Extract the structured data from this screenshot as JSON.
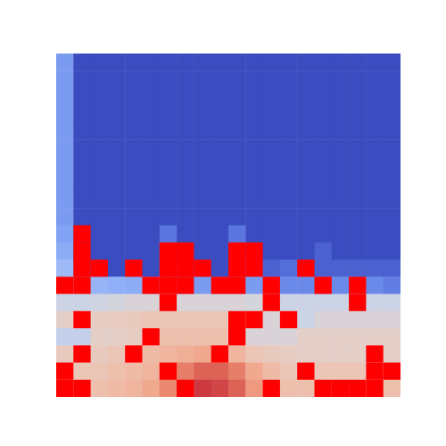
{
  "chart_data": {
    "type": "heatmap",
    "tick_labels": false,
    "color": "#ff0000",
    "color_range": [
      0,
      1
    ],
    "values": [
      [
        0.2,
        0,
        0,
        0,
        0,
        0,
        0,
        0,
        0,
        0,
        0,
        0,
        0,
        0,
        0,
        0,
        0,
        0,
        0,
        0
      ],
      [
        0.2,
        0,
        0,
        0,
        0,
        0,
        0,
        0,
        0,
        0,
        0,
        0,
        0,
        0,
        0,
        0,
        0,
        0,
        0,
        0
      ],
      [
        0.2,
        0,
        0,
        0,
        0,
        0,
        0,
        0,
        0,
        0,
        0,
        0,
        0,
        0,
        0,
        0,
        0,
        0,
        0,
        0
      ],
      [
        0.2,
        0,
        0,
        0,
        0,
        0,
        0,
        0,
        0,
        0,
        0,
        0,
        0,
        0,
        0,
        0,
        0,
        0,
        0,
        0
      ],
      [
        0.2,
        0,
        0,
        0,
        0,
        0,
        0,
        0,
        0,
        0,
        0,
        0,
        0,
        0,
        0,
        0,
        0,
        0,
        0,
        0
      ],
      [
        0.2,
        0,
        0,
        0,
        0,
        0,
        0,
        0,
        0,
        0,
        0,
        0,
        0,
        0,
        0,
        0,
        0,
        0,
        0,
        0
      ],
      [
        0.2,
        0,
        0,
        0,
        0,
        0,
        0,
        0,
        0,
        0,
        0,
        0,
        0,
        0,
        0,
        0,
        0,
        0,
        0,
        0
      ],
      [
        0.2,
        0,
        0,
        0,
        0,
        0,
        0,
        0,
        0,
        0,
        0,
        0,
        0,
        0,
        0,
        0,
        0,
        0,
        0,
        0
      ],
      [
        0.2,
        0,
        0,
        0,
        0,
        0,
        0,
        0,
        0,
        0,
        0,
        0,
        0,
        0,
        0,
        0,
        0,
        0,
        0,
        0
      ],
      [
        0.2,
        0,
        0,
        0,
        0,
        0,
        0,
        0,
        0,
        0,
        0,
        0,
        0,
        0,
        0,
        0,
        0,
        0,
        0,
        0
      ],
      [
        0.22,
        0,
        0,
        0,
        0,
        0,
        0.1,
        0,
        0,
        0,
        0.1,
        0,
        0,
        0,
        0,
        0,
        0,
        0,
        0,
        0
      ],
      [
        0.25,
        0,
        0,
        0,
        0,
        0,
        0.12,
        0,
        0,
        0,
        0.12,
        0,
        0,
        0,
        0,
        0.05,
        0,
        0,
        0,
        0
      ],
      [
        0.3,
        0.1,
        0,
        0,
        0,
        0,
        0.12,
        0.08,
        0,
        0,
        0.15,
        0.08,
        0.05,
        0.08,
        0.05,
        0.05,
        0.05,
        0.05,
        0.05,
        0.05
      ],
      [
        0.35,
        0.3,
        0.28,
        0.26,
        0.25,
        0.25,
        0.2,
        0.2,
        0.2,
        0.2,
        0.2,
        0.2,
        0.15,
        0.15,
        0.15,
        0.15,
        0.15,
        0.15,
        0.15,
        0.12
      ],
      [
        0.45,
        0.45,
        0.46,
        0.48,
        0.5,
        0.5,
        0.5,
        0.5,
        0.5,
        0.5,
        0.5,
        0.48,
        0.46,
        0.45,
        0.45,
        0.45,
        0.45,
        0.45,
        0.45,
        0.45
      ],
      [
        0.55,
        0.55,
        0.56,
        0.57,
        0.58,
        0.6,
        0.6,
        0.6,
        0.6,
        0.6,
        0.58,
        0.56,
        0.5,
        0.45,
        0.45,
        0.5,
        0.5,
        0.5,
        0.5,
        0.5
      ],
      [
        0.42,
        0.42,
        0.55,
        0.55,
        0.56,
        0.58,
        0.62,
        0.62,
        0.62,
        0.62,
        0.62,
        0.5,
        0.5,
        0.5,
        0.55,
        0.55,
        0.55,
        0.55,
        0.55,
        0.55
      ],
      [
        0.58,
        0.58,
        0.58,
        0.6,
        0.62,
        0.64,
        0.66,
        0.68,
        0.7,
        0.68,
        0.66,
        0.6,
        0.58,
        0.56,
        0.55,
        0.55,
        0.55,
        0.55,
        0.55,
        0.55
      ],
      [
        0.6,
        0.6,
        0.6,
        0.62,
        0.64,
        0.66,
        0.72,
        0.8,
        0.85,
        0.85,
        0.8,
        0.7,
        0.64,
        0.6,
        0.6,
        0.6,
        0.6,
        0.6,
        0.6,
        0.6
      ],
      [
        0.62,
        0.62,
        0.62,
        0.64,
        0.66,
        0.7,
        0.78,
        0.85,
        0.92,
        0.9,
        0.85,
        0.74,
        0.66,
        0.62,
        0.62,
        0.62,
        0.62,
        0.62,
        0.62,
        0.62
      ]
    ],
    "masked": [
      [
        10,
        1
      ],
      [
        11,
        1
      ],
      [
        11,
        6
      ],
      [
        11,
        7
      ],
      [
        11,
        10
      ],
      [
        11,
        11
      ],
      [
        12,
        1
      ],
      [
        12,
        2
      ],
      [
        12,
        4
      ],
      [
        12,
        6
      ],
      [
        12,
        7
      ],
      [
        12,
        8
      ],
      [
        12,
        10
      ],
      [
        12,
        11
      ],
      [
        12,
        14
      ],
      [
        13,
        0
      ],
      [
        13,
        1
      ],
      [
        13,
        5
      ],
      [
        13,
        6
      ],
      [
        13,
        7
      ],
      [
        13,
        9
      ],
      [
        13,
        10
      ],
      [
        13,
        12
      ],
      [
        13,
        15
      ],
      [
        13,
        17
      ],
      [
        14,
        6
      ],
      [
        14,
        12
      ],
      [
        14,
        17
      ],
      [
        15,
        1
      ],
      [
        15,
        10
      ],
      [
        15,
        11
      ],
      [
        15,
        13
      ],
      [
        16,
        5
      ],
      [
        16,
        10
      ],
      [
        17,
        1
      ],
      [
        17,
        4
      ],
      [
        17,
        9
      ],
      [
        17,
        18
      ],
      [
        18,
        0
      ],
      [
        18,
        6
      ],
      [
        18,
        14
      ],
      [
        18,
        18
      ],
      [
        18,
        19
      ],
      [
        19,
        0
      ],
      [
        19,
        1
      ],
      [
        19,
        7
      ],
      [
        19,
        12
      ],
      [
        19,
        15
      ],
      [
        19,
        16
      ],
      [
        19,
        17
      ],
      [
        19,
        18
      ]
    ]
  }
}
